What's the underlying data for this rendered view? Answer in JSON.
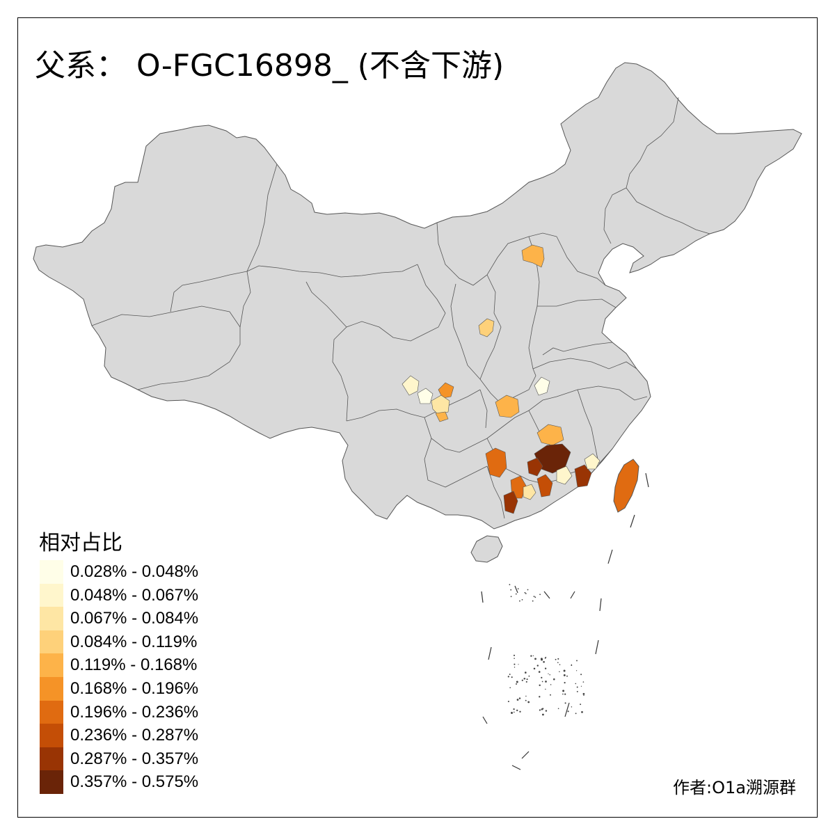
{
  "title": "父系： O-FGC16898_ (不含下游)",
  "legend": {
    "title": "相对占比",
    "items": [
      {
        "label": "0.028% - 0.048%",
        "color": "#FFFEE8"
      },
      {
        "label": "0.048% - 0.067%",
        "color": "#FFF6CC"
      },
      {
        "label": "0.067% - 0.084%",
        "color": "#FEE6A4"
      },
      {
        "label": "0.084% - 0.119%",
        "color": "#FED17A"
      },
      {
        "label": "0.119% - 0.168%",
        "color": "#FDB349"
      },
      {
        "label": "0.168% - 0.196%",
        "color": "#F59327"
      },
      {
        "label": "0.196% - 0.236%",
        "color": "#E06B11"
      },
      {
        "label": "0.236% - 0.287%",
        "color": "#C44E06"
      },
      {
        "label": "0.287% - 0.357%",
        "color": "#993404"
      },
      {
        "label": "0.357% - 0.575%",
        "color": "#6A2408"
      }
    ]
  },
  "author": "作者:O1a溯源群",
  "map": {
    "base_fill": "#D9D9D9",
    "border_color": "#555555"
  }
}
